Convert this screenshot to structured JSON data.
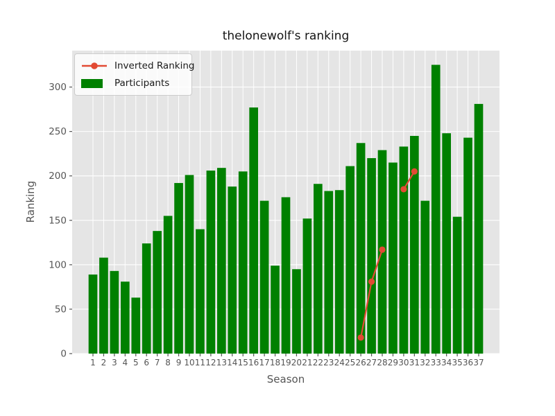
{
  "window": {
    "background": "#ffffff"
  },
  "colors": {
    "plot_background": "#e5e5e5",
    "grid": "#ffffff",
    "tick_text": "#555555",
    "title_text": "#141414",
    "bar": "#008000",
    "line": "#e24a33",
    "legend_background": "#ededed",
    "legend_border": "#cccccc"
  },
  "chart_data": {
    "type": "bar",
    "title": "thelonewolf's ranking",
    "xlabel": "Season",
    "ylabel": "Ranking",
    "categories": [
      "1",
      "2",
      "3",
      "4",
      "5",
      "6",
      "7",
      "8",
      "9",
      "10",
      "11",
      "12",
      "13",
      "14",
      "15",
      "16",
      "17",
      "18",
      "19",
      "20",
      "21",
      "22",
      "23",
      "24",
      "25",
      "26",
      "27",
      "28",
      "29",
      "30",
      "31",
      "32",
      "33",
      "34",
      "35",
      "36",
      "37"
    ],
    "series": [
      {
        "name": "Participants",
        "type": "bar",
        "color": "#008000",
        "values": [
          89,
          108,
          93,
          81,
          63,
          124,
          138,
          155,
          192,
          201,
          140,
          206,
          209,
          188,
          205,
          277,
          172,
          99,
          176,
          95,
          152,
          191,
          183,
          184,
          211,
          237,
          220,
          229,
          215,
          233,
          245,
          172,
          325,
          248,
          154,
          243,
          281
        ]
      },
      {
        "name": "Inverted Ranking",
        "type": "line",
        "color": "#e24a33",
        "marker": "circle",
        "values": [
          null,
          null,
          null,
          null,
          null,
          null,
          null,
          null,
          null,
          null,
          null,
          null,
          null,
          null,
          null,
          null,
          null,
          null,
          null,
          null,
          null,
          null,
          null,
          null,
          null,
          18,
          81,
          117,
          null,
          185,
          205,
          null,
          null,
          null,
          null,
          null,
          null
        ]
      }
    ],
    "ylim": [
      0,
      341
    ],
    "y_ticks": [
      0,
      50,
      100,
      150,
      200,
      250,
      300
    ],
    "grid": true,
    "legend_position": "upper left"
  }
}
